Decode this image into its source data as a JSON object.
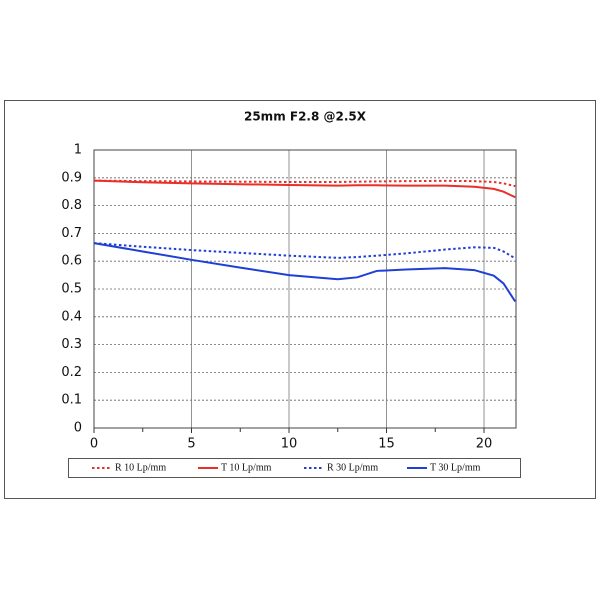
{
  "chart_data": {
    "type": "line",
    "title": "25mm F2.8  @2.5X",
    "x": [
      0,
      2.5,
      5,
      7.5,
      10,
      12.5,
      13.5,
      14.5,
      16,
      18,
      19.5,
      20.5,
      21,
      21.6
    ],
    "series": [
      {
        "name": "R 10 Lp/mm",
        "color": "#e8302a",
        "dash": "dotted",
        "values": [
          0.89,
          0.888,
          0.887,
          0.886,
          0.885,
          0.885,
          0.886,
          0.887,
          0.888,
          0.889,
          0.888,
          0.885,
          0.88,
          0.87
        ]
      },
      {
        "name": "T 10 Lp/mm",
        "color": "#e8302a",
        "dash": "solid",
        "values": [
          0.89,
          0.884,
          0.88,
          0.877,
          0.874,
          0.872,
          0.873,
          0.873,
          0.872,
          0.872,
          0.868,
          0.86,
          0.85,
          0.83
        ]
      },
      {
        "name": "R 30 Lp/mm",
        "color": "#1f3fd6",
        "dash": "dotted",
        "values": [
          0.665,
          0.652,
          0.64,
          0.63,
          0.62,
          0.612,
          0.615,
          0.62,
          0.628,
          0.642,
          0.65,
          0.648,
          0.635,
          0.61
        ]
      },
      {
        "name": "T 30 Lp/mm",
        "color": "#1f3fd6",
        "dash": "solid",
        "values": [
          0.665,
          0.635,
          0.605,
          0.577,
          0.55,
          0.535,
          0.542,
          0.565,
          0.57,
          0.575,
          0.568,
          0.548,
          0.52,
          0.455
        ]
      }
    ],
    "xlim": [
      0,
      21.64
    ],
    "ylim": [
      0,
      1
    ],
    "xticks": [
      0,
      5,
      10,
      15,
      20
    ],
    "x_minor_ticks": [
      2.5,
      7.5,
      12.5,
      17.5
    ],
    "yticks": [
      0,
      0.1,
      0.2,
      0.3,
      0.4,
      0.5,
      0.6,
      0.7,
      0.8,
      0.9,
      1
    ],
    "grid": true,
    "legend": "bottom"
  }
}
